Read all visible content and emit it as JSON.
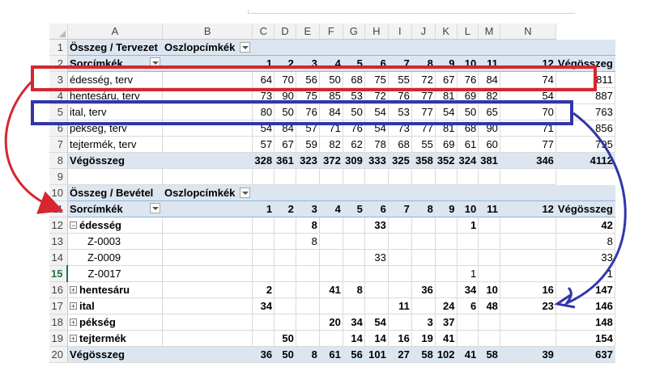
{
  "colors": {
    "red": "#d6262f",
    "blue": "#3236a8",
    "pivot_header": "#dce6f1"
  },
  "columns": [
    "A",
    "B",
    "C",
    "D",
    "E",
    "F",
    "G",
    "H",
    "I",
    "J",
    "K",
    "L",
    "M",
    "N"
  ],
  "active_row": "15",
  "tab1": {
    "r1": {
      "a": "Összeg / Tervezet",
      "b": "Oszlopcímkék"
    },
    "r2": {
      "label": "Sorcímkék",
      "nums": [
        "1",
        "2",
        "3",
        "4",
        "5",
        "6",
        "7",
        "8",
        "9",
        "10",
        "11",
        "12"
      ],
      "total": "Végösszeg"
    },
    "rows": [
      {
        "num": "3",
        "label": "édesség, terv",
        "vals": [
          "64",
          "70",
          "56",
          "50",
          "68",
          "75",
          "55",
          "72",
          "67",
          "76",
          "84",
          "74"
        ],
        "total": "811"
      },
      {
        "num": "4",
        "label": "hentesáru, terv",
        "vals": [
          "73",
          "90",
          "75",
          "85",
          "53",
          "72",
          "76",
          "77",
          "81",
          "69",
          "82",
          "54"
        ],
        "total": "887"
      },
      {
        "num": "5",
        "label": "ital, terv",
        "vals": [
          "80",
          "50",
          "76",
          "84",
          "50",
          "54",
          "53",
          "77",
          "54",
          "50",
          "65",
          "70"
        ],
        "total": "763"
      },
      {
        "num": "6",
        "label": "pékség, terv",
        "vals": [
          "54",
          "84",
          "57",
          "71",
          "76",
          "54",
          "73",
          "77",
          "81",
          "68",
          "90",
          "71"
        ],
        "total": "856"
      },
      {
        "num": "7",
        "label": "tejtermék, terv",
        "vals": [
          "57",
          "67",
          "59",
          "82",
          "62",
          "78",
          "68",
          "55",
          "69",
          "61",
          "60",
          "77"
        ],
        "total": "795"
      }
    ],
    "grand": {
      "num": "8",
      "label": "Végösszeg",
      "vals": [
        "328",
        "361",
        "323",
        "372",
        "309",
        "333",
        "325",
        "358",
        "352",
        "324",
        "381",
        "346"
      ],
      "total": "4112"
    }
  },
  "r9": "9",
  "tab2": {
    "r10": {
      "a": "Összeg / Bevétel",
      "b": "Oszlopcímkék"
    },
    "r11": {
      "label": "Sorcímkék",
      "nums": [
        "1",
        "2",
        "3",
        "4",
        "5",
        "6",
        "7",
        "8",
        "9",
        "10",
        "11",
        "12"
      ],
      "total": "Végösszeg"
    },
    "rows": [
      {
        "num": "12",
        "label": "édesség",
        "expander": "−",
        "bold": true,
        "vals": [
          "",
          "",
          "8",
          "",
          "",
          "33",
          "",
          "",
          "",
          "1",
          "",
          ""
        ],
        "total": "42"
      },
      {
        "num": "13",
        "label": "Z-0003",
        "child": true,
        "vals": [
          "",
          "",
          "8",
          "",
          "",
          "",
          "",
          "",
          "",
          "",
          "",
          ""
        ],
        "total": "8"
      },
      {
        "num": "14",
        "label": "Z-0009",
        "child": true,
        "vals": [
          "",
          "",
          "",
          "",
          "",
          "33",
          "",
          "",
          "",
          "",
          "",
          ""
        ],
        "total": "33"
      },
      {
        "num": "15",
        "label": "Z-0017",
        "child": true,
        "vals": [
          "",
          "",
          "",
          "",
          "",
          "",
          "",
          "",
          "",
          "1",
          "",
          ""
        ],
        "total": "1"
      },
      {
        "num": "16",
        "label": "hentesáru",
        "expander": "+",
        "bold": true,
        "vals": [
          "2",
          "",
          "",
          "41",
          "8",
          "",
          "",
          "36",
          "",
          "34",
          "10",
          "16"
        ],
        "total": "147"
      },
      {
        "num": "17",
        "label": "ital",
        "expander": "+",
        "bold": true,
        "vals": [
          "34",
          "",
          "",
          "",
          "",
          "",
          "11",
          "",
          "24",
          "6",
          "48",
          "23"
        ],
        "total": "146"
      },
      {
        "num": "18",
        "label": "pékség",
        "expander": "+",
        "bold": true,
        "vals": [
          "",
          "",
          "",
          "20",
          "34",
          "54",
          "",
          "3",
          "37",
          "",
          "",
          ""
        ],
        "total": "148"
      },
      {
        "num": "19",
        "label": "tejtermék",
        "expander": "+",
        "bold": true,
        "vals": [
          "",
          "50",
          "",
          "",
          "14",
          "14",
          "16",
          "19",
          "41",
          "",
          "",
          ""
        ],
        "total": "154"
      }
    ],
    "grand": {
      "num": "20",
      "label": "Végösszeg",
      "vals": [
        "36",
        "50",
        "8",
        "61",
        "56",
        "101",
        "27",
        "58",
        "102",
        "41",
        "58",
        "39"
      ],
      "total": "637"
    }
  }
}
